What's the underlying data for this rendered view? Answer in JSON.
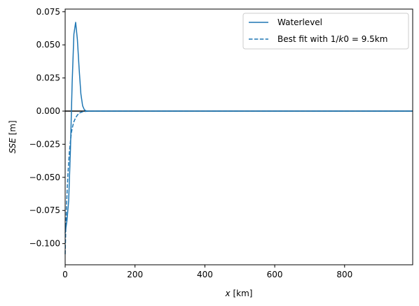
{
  "chart_data": {
    "type": "line",
    "xlabel_var": "x",
    "xlabel_unit": "[km]",
    "ylabel_var": "SSE",
    "ylabel_unit": "[m]",
    "xlim": [
      0,
      995
    ],
    "ylim": [
      -0.116,
      0.077
    ],
    "xticks": [
      0,
      200,
      400,
      600,
      800
    ],
    "yticks": [
      -0.1,
      -0.075,
      -0.05,
      -0.025,
      0.0,
      0.025,
      0.05,
      0.075
    ],
    "ytick_labels": [
      "−0.100",
      "−0.075",
      "−0.050",
      "−0.025",
      "0.000",
      "0.025",
      "0.050",
      "0.075"
    ],
    "grid": false,
    "legend_position": "top-right",
    "zero_line": 0,
    "series": [
      {
        "name": "Waterlevel",
        "style": "solid",
        "color": "#1f77b4",
        "x": [
          0,
          5,
          10,
          15,
          20,
          25,
          30,
          35,
          40,
          45,
          50,
          55,
          60,
          65,
          70,
          80,
          100,
          200,
          400,
          600,
          800,
          995
        ],
        "y": [
          -0.092,
          -0.083,
          -0.068,
          -0.03,
          0.021,
          0.058,
          0.067,
          0.054,
          0.032,
          0.013,
          0.004,
          0.001,
          0.0002,
          0.0,
          0.0,
          0.0,
          0.0,
          0.0,
          0.0,
          0.0,
          0.0,
          0.0
        ]
      },
      {
        "name": "Best fit with 1/k0 = 9.5km",
        "legend_prefix": "Best fit with 1/",
        "legend_k": "k",
        "legend_suffix": "0 = 9.5km",
        "style": "dashed",
        "color": "#1f77b4",
        "x": [
          0,
          2,
          4,
          6,
          8,
          10,
          12,
          15,
          18,
          21,
          25,
          30,
          35,
          40,
          50,
          60,
          70,
          80,
          100,
          200,
          400,
          600,
          800,
          995
        ],
        "y": [
          -0.108,
          -0.087,
          -0.071,
          -0.058,
          -0.047,
          -0.039,
          -0.031,
          -0.023,
          -0.016,
          -0.012,
          -0.008,
          -0.005,
          -0.003,
          -0.0015,
          -0.0005,
          -0.0002,
          -0.0001,
          0.0,
          0.0,
          0.0,
          0.0,
          0.0,
          0.0,
          0.0
        ]
      }
    ]
  }
}
